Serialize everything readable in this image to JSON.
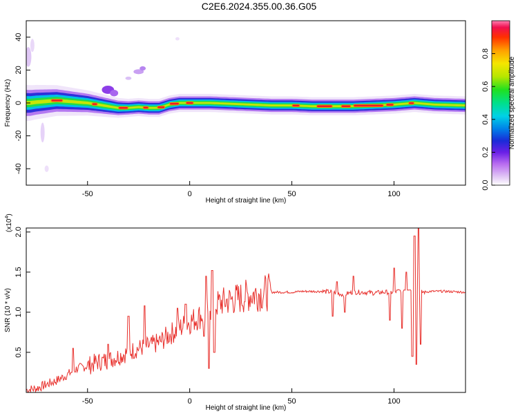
{
  "chart_data": [
    {
      "type": "heatmap",
      "title": "C2E6.2024.355.00.36.G05",
      "xlabel": "Height of straight line (km)",
      "ylabel": "Frequency (Hz)",
      "xlim": [
        -80,
        135
      ],
      "ylim": [
        -50,
        50
      ],
      "xticks": [
        -50,
        0,
        50,
        100
      ],
      "yticks": [
        40,
        20,
        0,
        -20,
        -40
      ],
      "grid": false,
      "ridge": {
        "x": [
          -78,
          -75,
          -70,
          -65,
          -60,
          -55,
          -50,
          -45,
          -40,
          -35,
          -30,
          -25,
          -20,
          -15,
          -10,
          -5,
          0,
          5,
          10,
          20,
          30,
          40,
          50,
          60,
          70,
          80,
          90,
          100,
          110,
          120,
          135
        ],
        "freq": [
          0,
          0.5,
          1,
          1.5,
          1,
          0.5,
          0,
          -1,
          -2,
          -3,
          -3,
          -2.5,
          -3,
          -3,
          -1,
          0,
          0,
          0,
          0,
          -0.5,
          -1,
          -1.5,
          -1.5,
          -2,
          -2,
          -2,
          -1.5,
          -1,
          0,
          -1,
          -1.5
        ]
      },
      "colorbar": {
        "label": "Normalized spectral amplitude",
        "ticks": [
          "0.0",
          "0.2",
          "0.4",
          "0.6",
          "0.8"
        ]
      }
    },
    {
      "type": "line",
      "xlabel": "Height of straight line (km)",
      "ylabel": "SNR (10 * v/v)",
      "y_multiplier": "(x10",
      "y_multiplier_exp": "4",
      "y_multiplier_close": ")",
      "xlim": [
        -80,
        135
      ],
      "ylim": [
        0,
        2.05
      ],
      "xticks": [
        -50,
        0,
        50,
        100
      ],
      "yticks": [
        0.5,
        1.0,
        1.5,
        2.0
      ],
      "ytick_labels": [
        "0.5",
        "1.0",
        "1.5",
        "2.0"
      ],
      "color": "#e8302c",
      "series": [
        {
          "x": [
            -80,
            -75,
            -70,
            -65,
            -60,
            -55,
            -50,
            -45,
            -40,
            -35,
            -30,
            -25,
            -20,
            -15,
            -10,
            -5,
            0,
            5,
            8,
            10,
            12,
            15,
            20,
            25,
            30,
            35,
            40,
            45,
            50,
            55,
            60,
            65,
            70,
            75,
            80,
            85,
            90,
            95,
            100,
            105,
            108,
            110,
            112,
            114,
            118,
            125,
            135
          ],
          "y": [
            0.03,
            0.05,
            0.1,
            0.15,
            0.22,
            0.3,
            0.33,
            0.38,
            0.4,
            0.45,
            0.5,
            0.55,
            0.58,
            0.62,
            0.72,
            0.8,
            0.88,
            0.95,
            1.0,
            1.05,
            1.08,
            1.12,
            1.15,
            1.18,
            1.22,
            1.24,
            1.25,
            1.25,
            1.25,
            1.26,
            1.26,
            1.26,
            1.25,
            1.22,
            1.25,
            1.25,
            1.24,
            1.25,
            1.25,
            1.28,
            1.3,
            1.2,
            1.25,
            1.25,
            1.26,
            1.26,
            1.25
          ]
        }
      ]
    }
  ]
}
